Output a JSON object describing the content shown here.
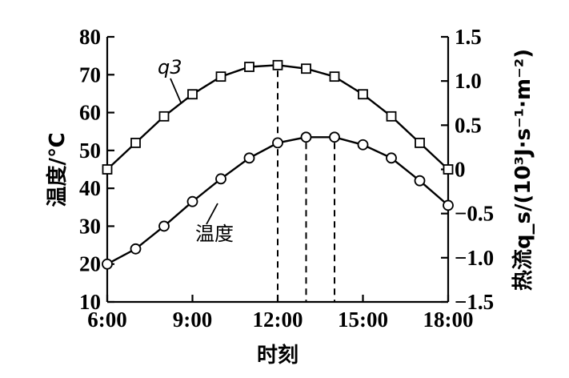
{
  "chart_data": {
    "type": "line",
    "xlabel": "时刻",
    "ylabel_left": "温度/℃",
    "ylabel_right": "热流q_s/(10³J·s⁻¹·m⁻²)",
    "x_ticks": [
      "6:00",
      "9:00",
      "12:00",
      "15:00",
      "18:00"
    ],
    "x_range": [
      6,
      18
    ],
    "y_left_range": [
      10,
      80
    ],
    "y_left_ticks": [
      "10",
      "20",
      "30",
      "40",
      "50",
      "60",
      "70",
      "80"
    ],
    "y_right_range": [
      -1.5,
      1.5
    ],
    "y_right_ticks": [
      "−1.5",
      "−1.0",
      "−0.5",
      "0",
      "0.5",
      "1.0",
      "1.5"
    ],
    "series": [
      {
        "name": "q3",
        "axis": "right",
        "marker": "square",
        "x": [
          6,
          7,
          8,
          9,
          10,
          11,
          12,
          13,
          14,
          15,
          16,
          17,
          18
        ],
        "values": [
          0.0,
          0.3,
          0.6,
          0.85,
          1.05,
          1.16,
          1.18,
          1.14,
          1.05,
          0.85,
          0.6,
          0.3,
          0.0
        ]
      },
      {
        "name": "温度",
        "axis": "left",
        "marker": "circle",
        "x": [
          6,
          7,
          8,
          9,
          10,
          11,
          12,
          13,
          14,
          15,
          16,
          17,
          18
        ],
        "values": [
          20,
          24,
          30,
          36.5,
          42.5,
          48,
          52,
          53.5,
          53.5,
          51.5,
          48,
          42,
          35.5
        ]
      }
    ],
    "reference_lines_x": [
      12,
      13,
      14
    ],
    "grid": false
  }
}
